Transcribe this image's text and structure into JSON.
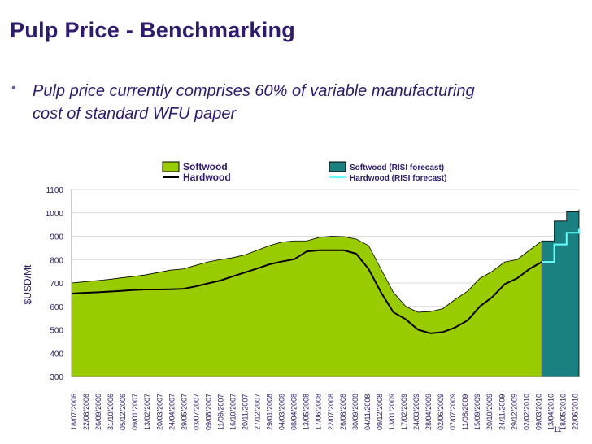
{
  "slide": {
    "title": "Pulp Price - Benchmarking",
    "bullet_text": "Pulp price currently comprises 60% of variable manufacturing cost of standard WFU paper",
    "page_number": "11"
  },
  "chart_data": {
    "type": "area",
    "title": "",
    "ylabel": "$USD/Mt",
    "xlabel": "",
    "ylim": [
      300,
      1100
    ],
    "yticks": [
      300,
      400,
      500,
      600,
      700,
      800,
      900,
      1000,
      1100
    ],
    "grid": true,
    "legend_position": "top",
    "colors": {
      "softwood": "#99cc00",
      "softwood_forecast": "#1a8080",
      "hardwood": "#000000",
      "hardwood_forecast": "#66ffff"
    },
    "categories": [
      "18/07/2006",
      "22/08/2006",
      "26/09/2006",
      "31/10/2006",
      "05/12/2006",
      "09/01/2007",
      "13/02/2007",
      "20/03/2007",
      "24/04/2007",
      "29/05/2007",
      "03/07/2007",
      "09/08/2007",
      "11/09/2007",
      "16/10/2007",
      "20/11/2007",
      "27/12/2007",
      "29/01/2008",
      "04/03/2008",
      "08/04/2008",
      "13/05/2008",
      "17/06/2008",
      "22/07/2008",
      "26/08/2008",
      "30/09/2008",
      "04/11/2008",
      "09/12/2008",
      "13/01/2009",
      "17/02/2009",
      "24/03/2009",
      "28/04/2009",
      "02/06/2009",
      "07/07/2009",
      "11/08/2009",
      "15/09/2009",
      "20/10/2009",
      "24/11/2009",
      "29/12/2009",
      "02/02/2010",
      "09/03/2010",
      "13/04/2010",
      "18/05/2010",
      "22/06/2010"
    ],
    "series": [
      {
        "name": "Softwood",
        "style": "area",
        "values": [
          700,
          705,
          710,
          715,
          722,
          728,
          735,
          745,
          755,
          760,
          775,
          790,
          800,
          808,
          820,
          840,
          860,
          875,
          880,
          880,
          895,
          900,
          898,
          888,
          860,
          760,
          660,
          600,
          575,
          578,
          590,
          630,
          665,
          720,
          750,
          790,
          800,
          840,
          880,
          null,
          null,
          null
        ]
      },
      {
        "name": "Hardwood",
        "style": "line",
        "values": [
          655,
          658,
          660,
          663,
          666,
          670,
          672,
          672,
          673,
          675,
          685,
          698,
          710,
          728,
          745,
          762,
          780,
          792,
          802,
          835,
          840,
          840,
          840,
          825,
          760,
          660,
          575,
          545,
          500,
          485,
          490,
          510,
          540,
          600,
          640,
          695,
          720,
          760,
          790,
          null,
          null,
          null
        ]
      },
      {
        "name": "Softwood (RISI forecast)",
        "style": "area",
        "values": [
          null,
          null,
          null,
          null,
          null,
          null,
          null,
          null,
          null,
          null,
          null,
          null,
          null,
          null,
          null,
          null,
          null,
          null,
          null,
          null,
          null,
          null,
          null,
          null,
          null,
          null,
          null,
          null,
          null,
          null,
          null,
          null,
          null,
          null,
          null,
          null,
          null,
          null,
          880,
          965,
          1005,
          1015
        ]
      },
      {
        "name": "Hardwood (RISI forecast)",
        "style": "line",
        "values": [
          null,
          null,
          null,
          null,
          null,
          null,
          null,
          null,
          null,
          null,
          null,
          null,
          null,
          null,
          null,
          null,
          null,
          null,
          null,
          null,
          null,
          null,
          null,
          null,
          null,
          null,
          null,
          null,
          null,
          null,
          null,
          null,
          null,
          null,
          null,
          null,
          null,
          null,
          790,
          865,
          915,
          935
        ]
      }
    ]
  }
}
